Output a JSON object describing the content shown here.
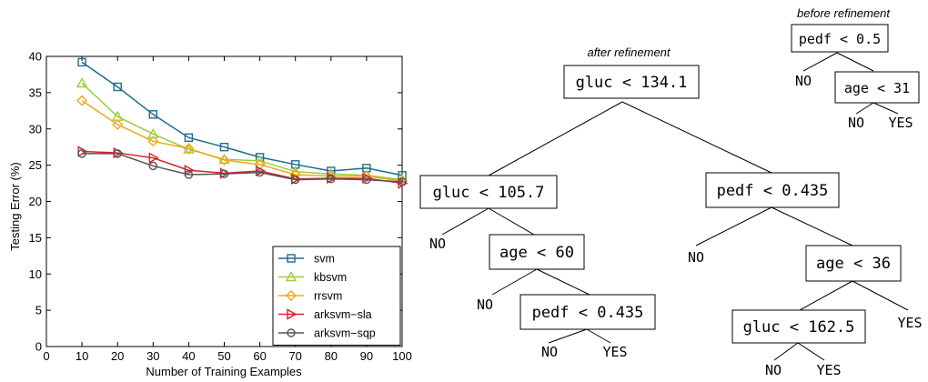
{
  "chart_data": {
    "type": "line",
    "xlabel": "Number of Training Examples",
    "ylabel": "Testing Error (%)",
    "xlim": [
      0,
      100
    ],
    "ylim": [
      0,
      40
    ],
    "x": [
      10,
      20,
      30,
      40,
      50,
      60,
      70,
      80,
      90,
      100
    ],
    "xticks": [
      "0",
      "10",
      "20",
      "30",
      "40",
      "50",
      "60",
      "70",
      "80",
      "90",
      "100"
    ],
    "yticks": [
      "0",
      "5",
      "10",
      "15",
      "20",
      "25",
      "30",
      "35",
      "40"
    ],
    "grid": false,
    "legend_position": "bottom-right",
    "series": [
      {
        "name": "svm",
        "marker": "square",
        "color": "#1f6b8f",
        "values": [
          39.2,
          35.8,
          32.0,
          28.8,
          27.5,
          26.1,
          25.1,
          24.2,
          24.6,
          23.6
        ]
      },
      {
        "name": "kbsvm",
        "marker": "triangle-up",
        "color": "#9ccc3c",
        "values": [
          36.3,
          31.7,
          29.3,
          27.2,
          25.8,
          25.6,
          24.1,
          23.8,
          23.6,
          23.0
        ]
      },
      {
        "name": "rrsvm",
        "marker": "diamond",
        "color": "#f0a81c",
        "values": [
          33.9,
          30.6,
          28.3,
          27.3,
          25.7,
          25.1,
          23.7,
          23.5,
          23.5,
          22.8
        ]
      },
      {
        "name": "arksvm−sla",
        "marker": "triangle-right",
        "color": "#d9232d",
        "values": [
          26.9,
          26.7,
          26.0,
          24.3,
          23.9,
          24.2,
          23.1,
          23.2,
          23.2,
          22.5
        ]
      },
      {
        "name": "arksvm−sqp",
        "marker": "circle",
        "color": "#555555",
        "values": [
          26.6,
          26.6,
          24.9,
          23.7,
          23.8,
          24.0,
          23.0,
          23.1,
          23.0,
          22.7
        ]
      }
    ]
  },
  "trees": {
    "after_caption": "after refinement",
    "before_caption": "before refinement",
    "after": {
      "root": "gluc < 134.1",
      "left": "gluc < 105.7",
      "right": "pedf < 0.435",
      "left_no": "NO",
      "left_age": "age < 60",
      "left_age_no": "NO",
      "left_age_pedf": "pedf < 0.435",
      "left_pedf_no": "NO",
      "left_pedf_yes": "YES",
      "right_no": "NO",
      "right_age": "age < 36",
      "right_age_gluc": "gluc < 162.5",
      "right_age_yes": "YES",
      "right_gluc_no": "NO",
      "right_gluc_yes": "YES"
    },
    "before": {
      "root": "pedf < 0.5",
      "no": "NO",
      "age": "age < 31",
      "age_no": "NO",
      "age_yes": "YES"
    }
  }
}
